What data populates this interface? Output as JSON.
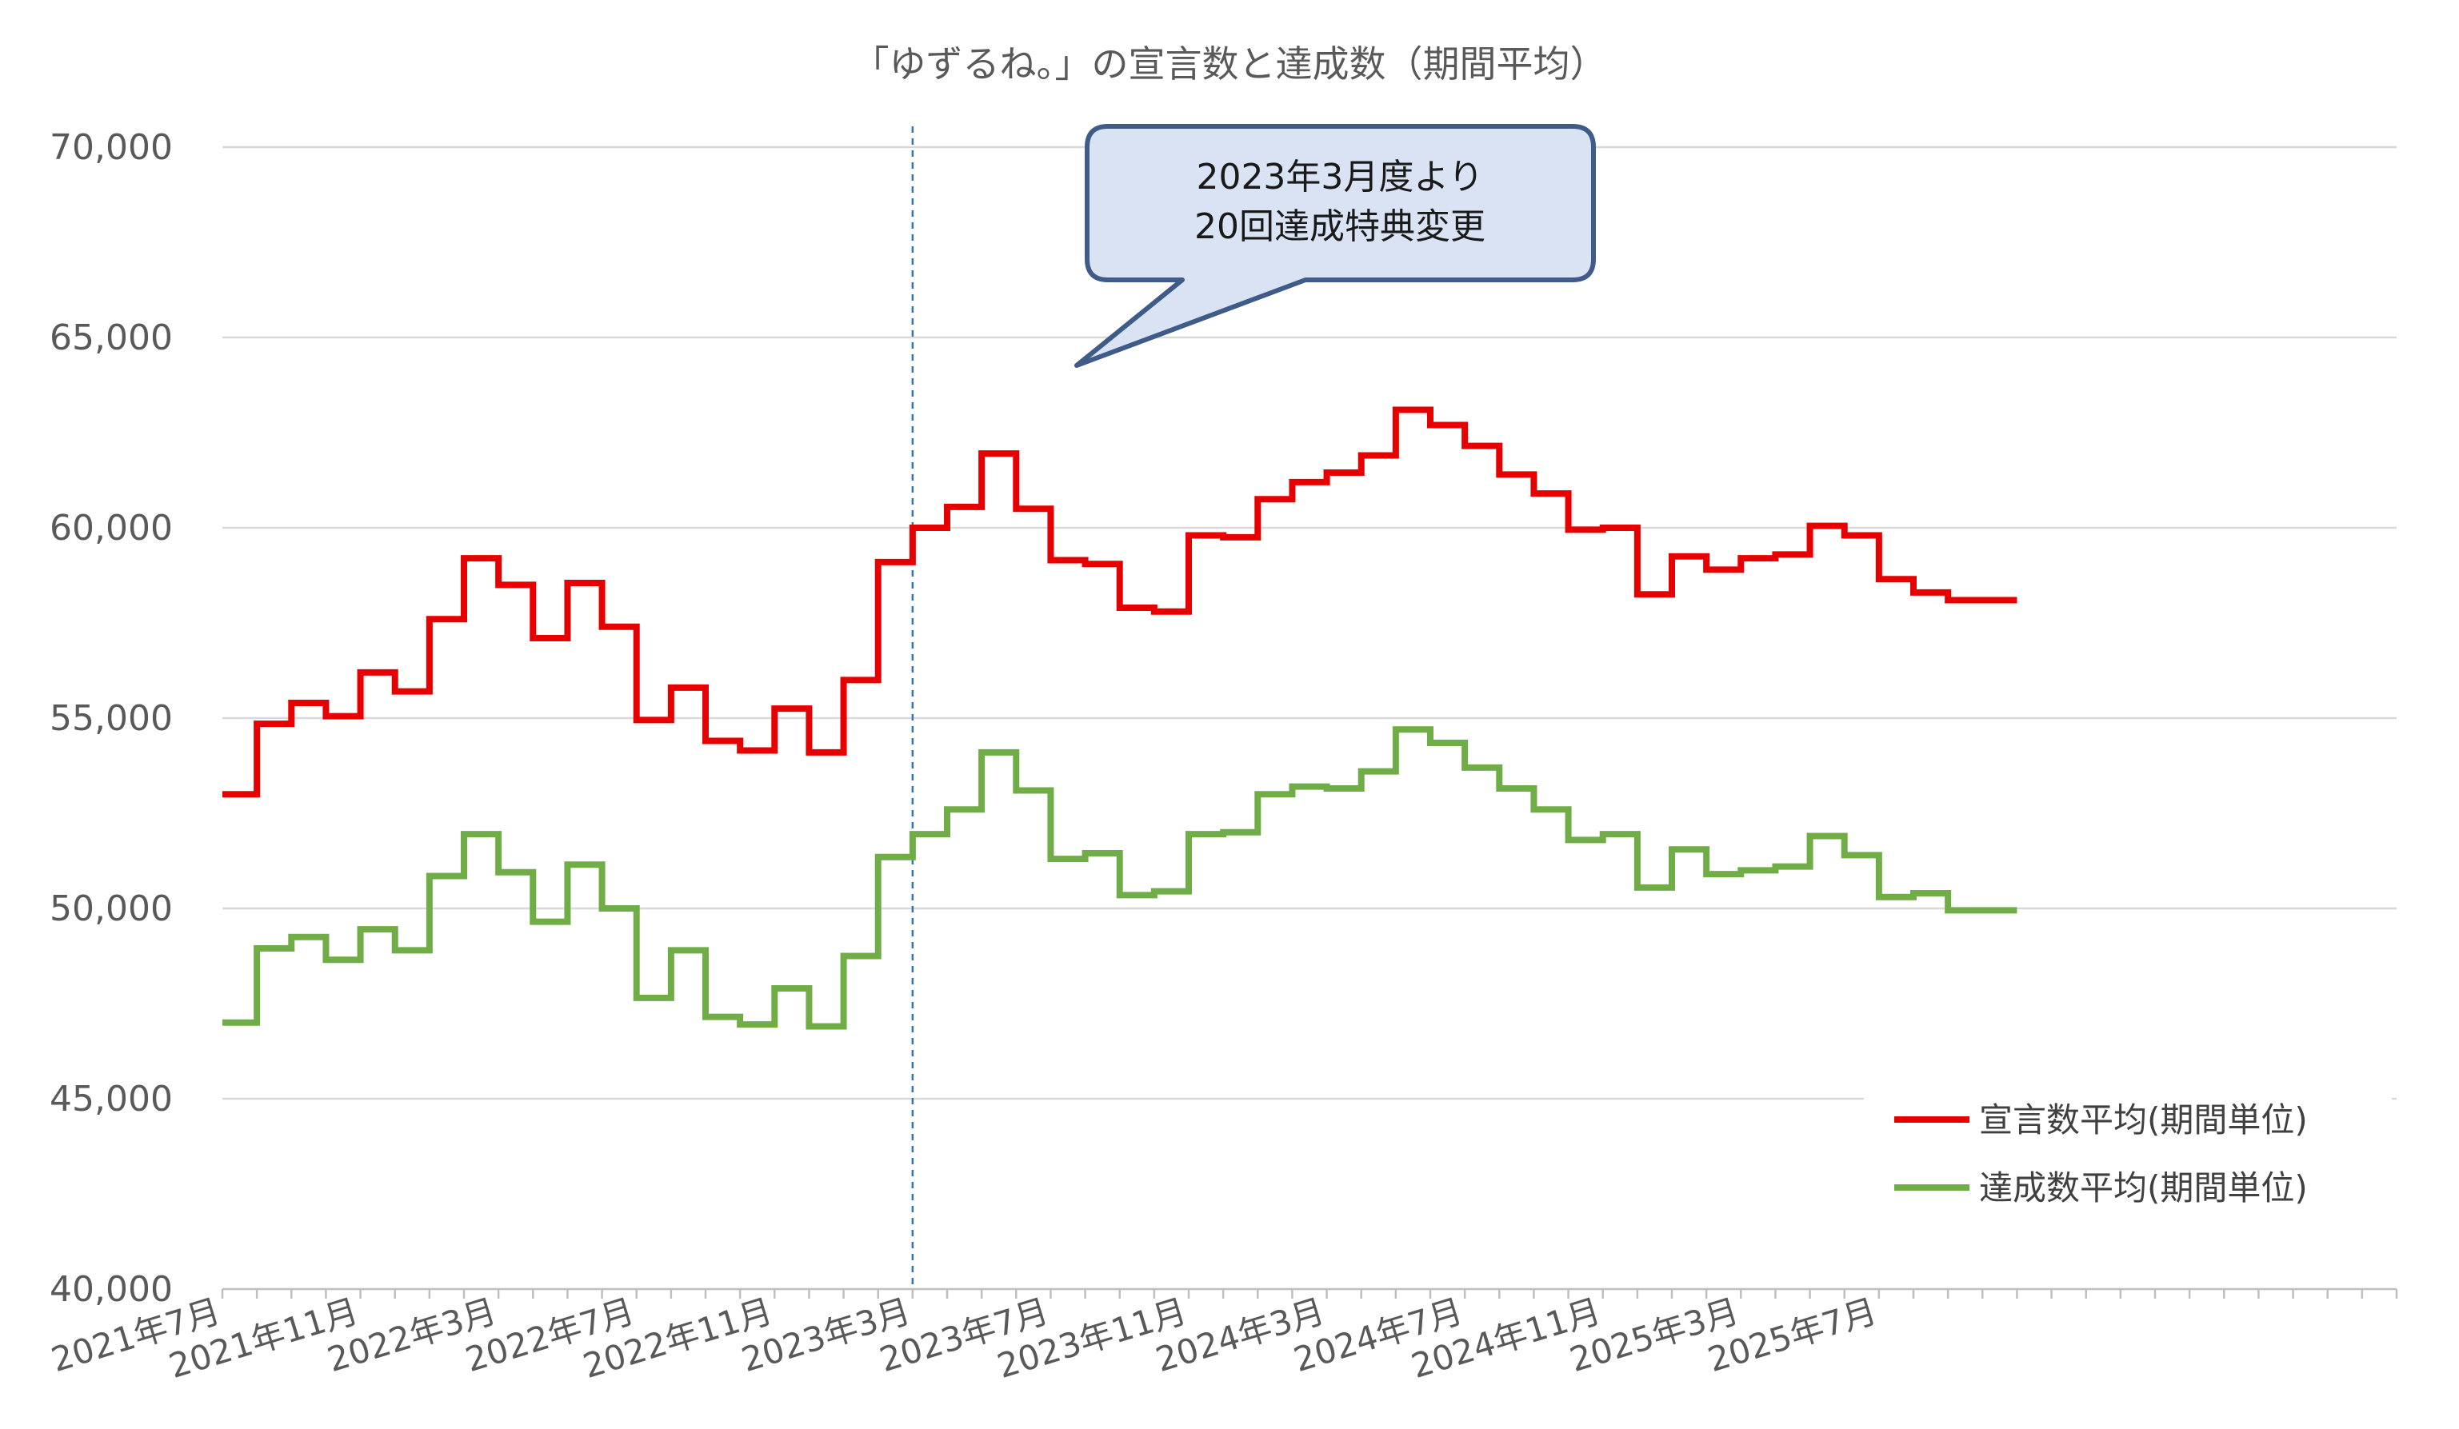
{
  "chart_data": {
    "type": "line",
    "title": "「ゆずるね。」の宣言数と達成数（期間平均）",
    "xlabel": "",
    "ylabel": "",
    "ylim": [
      40000,
      70000
    ],
    "y_ticks": [
      "70,000",
      "65,000",
      "60,000",
      "55,000",
      "50,000",
      "45,000",
      "40,000"
    ],
    "y_tick_values": [
      70000,
      65000,
      60000,
      55000,
      50000,
      45000,
      40000
    ],
    "x_tick_labels": [
      "2021年7月",
      "2021年11月",
      "2022年3月",
      "2022年7月",
      "2022年11月",
      "2023年3月",
      "2023年7月",
      "2023年11月",
      "2024年3月",
      "2024年7月",
      "2024年11月",
      "2025年3月",
      "2025年7月"
    ],
    "x_range_months": [
      "2021-07",
      "2026-10"
    ],
    "grid": true,
    "step_line": true,
    "legend_position": "bottom-right",
    "series": [
      {
        "name": "宣言数平均(期間単位)",
        "color": "#e60000",
        "x": [
          "2021-07",
          "2021-08",
          "2021-09",
          "2021-10",
          "2021-11",
          "2021-12",
          "2022-01",
          "2022-02",
          "2022-03",
          "2022-04",
          "2022-05",
          "2022-06",
          "2022-07",
          "2022-08",
          "2022-09",
          "2022-10",
          "2022-11",
          "2022-12",
          "2023-01",
          "2023-02",
          "2023-03",
          "2023-04",
          "2023-05",
          "2023-06",
          "2023-07",
          "2023-08",
          "2023-09",
          "2023-10",
          "2023-11",
          "2023-12",
          "2024-01",
          "2024-02",
          "2024-03",
          "2024-04",
          "2024-05",
          "2024-06",
          "2024-07",
          "2024-08",
          "2024-09",
          "2024-10",
          "2024-11",
          "2024-12",
          "2025-01",
          "2025-02",
          "2025-03",
          "2025-04",
          "2025-05",
          "2025-06",
          "2025-07",
          "2025-08",
          "2025-09",
          "2025-10"
        ],
        "values": [
          53000,
          54850,
          55400,
          55050,
          56200,
          55700,
          57600,
          59200,
          58500,
          57100,
          58550,
          57400,
          54950,
          55800,
          54400,
          54150,
          55250,
          54100,
          56000,
          59100,
          60000,
          60550,
          61950,
          60500,
          59150,
          59050,
          57900,
          57800,
          59800,
          59750,
          60750,
          61200,
          61450,
          61900,
          63100,
          62700,
          62150,
          61400,
          60900,
          59950,
          60000,
          58250,
          59250,
          58900,
          59200,
          59300,
          60050,
          59800,
          58650,
          58300,
          58100,
          58100
        ]
      },
      {
        "name": "達成数平均(期間単位)",
        "color": "#70ad47",
        "x": [
          "2021-07",
          "2021-08",
          "2021-09",
          "2021-10",
          "2021-11",
          "2021-12",
          "2022-01",
          "2022-02",
          "2022-03",
          "2022-04",
          "2022-05",
          "2022-06",
          "2022-07",
          "2022-08",
          "2022-09",
          "2022-10",
          "2022-11",
          "2022-12",
          "2023-01",
          "2023-02",
          "2023-03",
          "2023-04",
          "2023-05",
          "2023-06",
          "2023-07",
          "2023-08",
          "2023-09",
          "2023-10",
          "2023-11",
          "2023-12",
          "2024-01",
          "2024-02",
          "2024-03",
          "2024-04",
          "2024-05",
          "2024-06",
          "2024-07",
          "2024-08",
          "2024-09",
          "2024-10",
          "2024-11",
          "2024-12",
          "2025-01",
          "2025-02",
          "2025-03",
          "2025-04",
          "2025-05",
          "2025-06",
          "2025-07",
          "2025-08",
          "2025-09",
          "2025-10"
        ],
        "values": [
          47000,
          48950,
          49250,
          48650,
          49450,
          48900,
          50850,
          51950,
          50950,
          49650,
          51150,
          50000,
          47650,
          48900,
          47150,
          46950,
          47900,
          46900,
          48750,
          51350,
          51950,
          52600,
          54100,
          53100,
          51300,
          51450,
          50350,
          50450,
          51950,
          52000,
          53000,
          53200,
          53150,
          53600,
          54700,
          54350,
          53700,
          53150,
          52600,
          51800,
          51950,
          50550,
          51550,
          50900,
          51000,
          51100,
          51900,
          51400,
          50300,
          50400,
          49950,
          49950
        ]
      }
    ],
    "annotation": {
      "lines": [
        "2023年3月度より",
        "20回達成特典変更"
      ],
      "marker_x": "2023-03"
    }
  }
}
